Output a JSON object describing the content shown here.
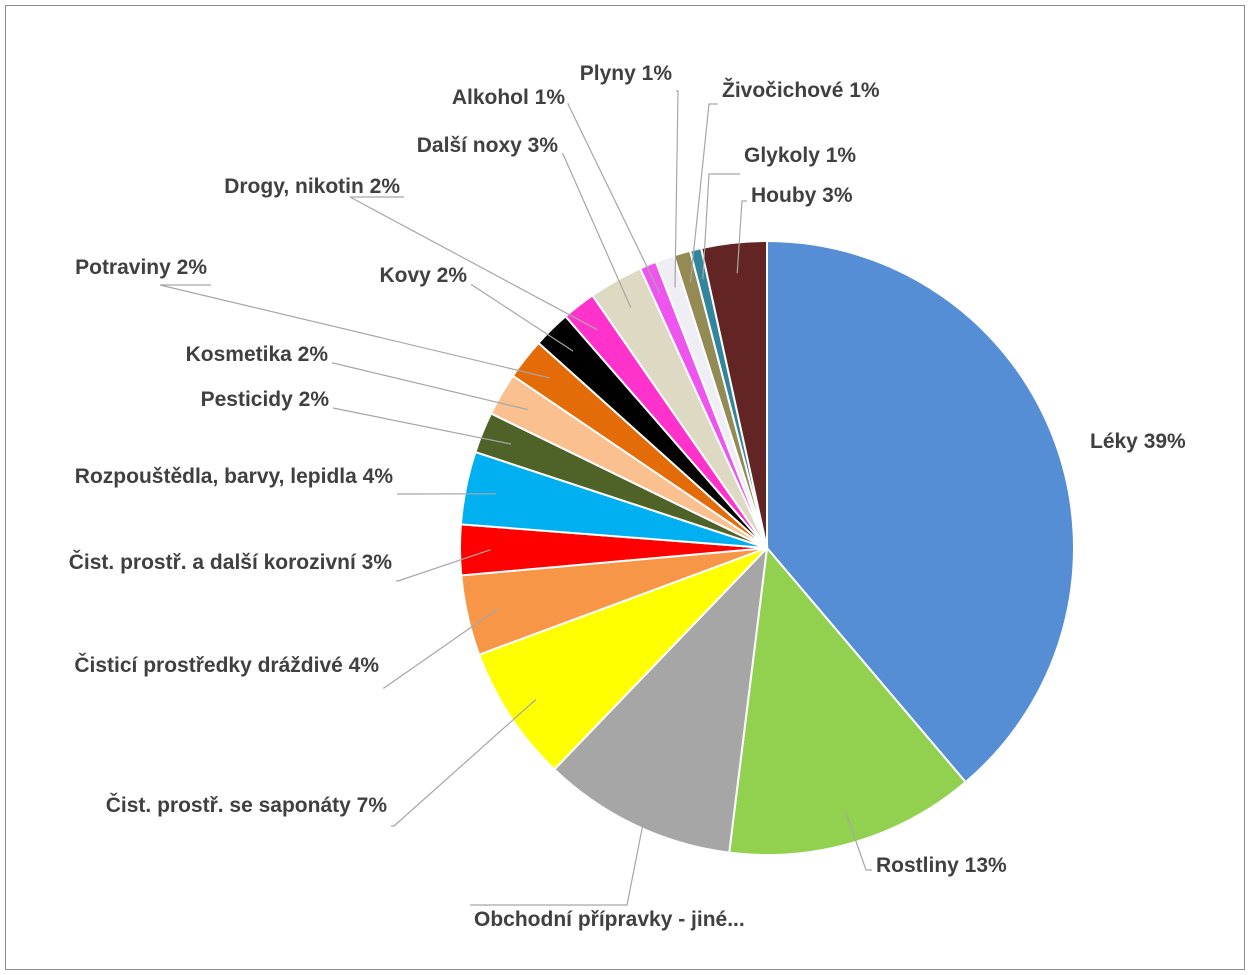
{
  "chart_data": {
    "type": "pie",
    "start_angle_deg": 0,
    "direction": "clockwise",
    "slices": [
      {
        "category": "Léky",
        "label": "Léky 39%",
        "value": 39.5,
        "color": "#558ED5"
      },
      {
        "category": "Rostliny",
        "label": "Rostliny 13%",
        "value": 13.4,
        "color": "#92D050"
      },
      {
        "category": "Obchodní přípravky - jiné",
        "label": "Obchodní přípravky - jiné...",
        "value": 10.4,
        "color": "#A6A6A6"
      },
      {
        "category": "Čist. prostř. se saponáty",
        "label": "Čist. prostř. se saponáty 7%",
        "value": 7.3,
        "color": "#FFFF00"
      },
      {
        "category": "Čisticí prostředky dráždivé",
        "label": "Čisticí prostředky dráždivé 4%",
        "value": 4.3,
        "color": "#F79646"
      },
      {
        "category": "Čist. prostř. a další korozivní",
        "label": "Čist. prostř. a další korozivní  3%",
        "value": 2.7,
        "color": "#FF0000"
      },
      {
        "category": "Rozpouštědla, barvy, lepidla",
        "label": "Rozpouštědla, barvy, lepidla 4%",
        "value": 3.9,
        "color": "#00B0F0"
      },
      {
        "category": "Pesticidy",
        "label": "Pesticidy 2%",
        "value": 2.2,
        "color": "#4F6228"
      },
      {
        "category": "Kosmetika",
        "label": "Kosmetika 2%",
        "value": 2.3,
        "color": "#FAC090"
      },
      {
        "category": "Potraviny",
        "label": "Potraviny 2%",
        "value": 2.2,
        "color": "#E36C09"
      },
      {
        "category": "Kovy",
        "label": "Kovy 2%",
        "value": 2.0,
        "color": "#000000"
      },
      {
        "category": "Drogy, nikotin",
        "label": "Drogy, nikotin 2%",
        "value": 1.8,
        "color": "#FF33CC"
      },
      {
        "category": "Další noxy",
        "label": "Další noxy 3%",
        "value": 2.9,
        "color": "#DDD9C3"
      },
      {
        "category": "Alkohol",
        "label": "Alkohol 1%",
        "value": 0.9,
        "color": "#EE55EE"
      },
      {
        "category": "Plyny",
        "label": "Plyny 1%",
        "value": 1.0,
        "color": "#EEEEF4"
      },
      {
        "category": "Živočichové",
        "label": "Živočichové 1%",
        "value": 0.9,
        "color": "#948A54"
      },
      {
        "category": "Glykoly",
        "label": "Glykoly 1%",
        "value": 0.6,
        "color": "#31859C"
      },
      {
        "category": "Houby",
        "label": "Houby 3%",
        "value": 3.5,
        "color": "#632523"
      }
    ]
  }
}
